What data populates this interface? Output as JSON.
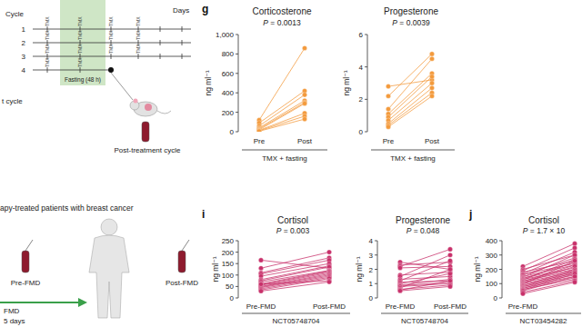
{
  "chart_data": [
    {
      "type": "line",
      "title": "Corticosterone",
      "annotations": [
        "P = 0.0013"
      ],
      "ylabel": "ng ml⁻¹",
      "xlabel": "TMX + fasting",
      "categories": [
        "Pre",
        "Post"
      ],
      "color": "#f39a3c",
      "marker": "circle",
      "ylim": [
        0,
        1000
      ],
      "yticks": [
        0,
        200,
        400,
        600,
        800,
        {
          "value": 1000,
          "label": "1,000"
        }
      ],
      "series": [
        {
          "values": [
            120,
            860
          ]
        },
        {
          "values": [
            90,
            420
          ]
        },
        {
          "values": [
            60,
            380
          ]
        },
        {
          "values": [
            40,
            320
          ]
        },
        {
          "values": [
            30,
            300
          ]
        },
        {
          "values": [
            20,
            290
          ]
        },
        {
          "values": [
            15,
            190
          ]
        },
        {
          "values": [
            10,
            160
          ]
        },
        {
          "values": [
            5,
            130
          ]
        }
      ]
    },
    {
      "type": "line",
      "title": "Progesterone",
      "annotations": [
        "P = 0.0039"
      ],
      "ylabel": "ng ml⁻¹",
      "xlabel": "TMX + fasting",
      "categories": [
        "Pre",
        "Post"
      ],
      "color": "#f39a3c",
      "marker": "circle",
      "ylim": [
        0,
        6
      ],
      "yticks": [
        0,
        2,
        4,
        6
      ],
      "series": [
        {
          "values": [
            2.8,
            3.2
          ]
        },
        {
          "values": [
            2.2,
            4.8
          ]
        },
        {
          "values": [
            1.4,
            4.5
          ]
        },
        {
          "values": [
            1.1,
            3.6
          ]
        },
        {
          "values": [
            0.9,
            3.4
          ]
        },
        {
          "values": [
            0.7,
            3.0
          ]
        },
        {
          "values": [
            0.5,
            2.7
          ]
        },
        {
          "values": [
            0.4,
            2.4
          ]
        },
        {
          "values": [
            0.3,
            2.2
          ]
        }
      ]
    },
    {
      "type": "line",
      "title": "Cortisol",
      "annotations": [
        "P = 0.003"
      ],
      "ylabel": "ng ml⁻¹",
      "xlabel": "NCT05748704",
      "categories": [
        "Pre-FMD",
        "Post-FMD"
      ],
      "color": "#c8306a",
      "marker": "circle",
      "ylim": [
        0,
        250
      ],
      "yticks": [
        0,
        50,
        100,
        150,
        200,
        250
      ],
      "series": [
        {
          "values": [
            165,
            130
          ]
        },
        {
          "values": [
            130,
            200
          ]
        },
        {
          "values": [
            110,
            175
          ]
        },
        {
          "values": [
            105,
            165
          ]
        },
        {
          "values": [
            95,
            150
          ]
        },
        {
          "values": [
            80,
            140
          ]
        },
        {
          "values": [
            75,
            135
          ]
        },
        {
          "values": [
            70,
            120
          ]
        },
        {
          "values": [
            62,
            118
          ]
        },
        {
          "values": [
            58,
            115
          ]
        },
        {
          "values": [
            55,
            110
          ]
        },
        {
          "values": [
            50,
            105
          ]
        },
        {
          "values": [
            48,
            100
          ]
        },
        {
          "values": [
            45,
            95
          ]
        },
        {
          "values": [
            40,
            90
          ]
        },
        {
          "values": [
            35,
            85
          ]
        },
        {
          "values": [
            60,
            75
          ]
        },
        {
          "values": [
            30,
            70
          ]
        }
      ]
    },
    {
      "type": "line",
      "title": "Progesterone",
      "annotations": [
        "P = 0.048"
      ],
      "ylabel": "ng ml⁻¹",
      "xlabel": "NCT05748704",
      "categories": [
        "Pre-FMD",
        "Post-FMD"
      ],
      "color": "#c8306a",
      "marker": "circle",
      "ylim": [
        0,
        4
      ],
      "yticks": [
        0,
        1,
        2,
        3,
        4
      ],
      "series": [
        {
          "values": [
            2.5,
            2.0
          ]
        },
        {
          "values": [
            2.3,
            2.5
          ]
        },
        {
          "values": [
            2.2,
            3.4
          ]
        },
        {
          "values": [
            2.1,
            2.2
          ]
        },
        {
          "values": [
            1.6,
            1.8
          ]
        },
        {
          "values": [
            1.5,
            3.0
          ]
        },
        {
          "values": [
            1.3,
            1.5
          ]
        },
        {
          "values": [
            1.2,
            2.6
          ]
        },
        {
          "values": [
            1.1,
            1.2
          ]
        },
        {
          "values": [
            1.0,
            1.7
          ]
        },
        {
          "values": [
            0.9,
            1.3
          ]
        },
        {
          "values": [
            0.85,
            1.1
          ]
        },
        {
          "values": [
            0.8,
            1.0
          ]
        },
        {
          "values": [
            0.7,
            2.0
          ]
        },
        {
          "values": [
            0.6,
            0.9
          ]
        },
        {
          "values": [
            0.55,
            1.2
          ]
        },
        {
          "values": [
            0.5,
            0.8
          ]
        }
      ]
    },
    {
      "type": "line",
      "title": "Cortisol",
      "annotations": [
        "P = 1.7 × 10"
      ],
      "ylabel": "ng ml⁻¹",
      "xlabel": "NCT03454282",
      "categories": [
        "Pre-FMD",
        null
      ],
      "color": "#c8306a",
      "marker": "circle",
      "ylim": [
        0,
        400
      ],
      "yticks": [
        0,
        100,
        200,
        300,
        400
      ],
      "series": [
        {
          "values": [
            220,
            380
          ]
        },
        {
          "values": [
            200,
            300
          ]
        },
        {
          "values": [
            190,
            350
          ]
        },
        {
          "values": [
            180,
            260
          ]
        },
        {
          "values": [
            170,
            320
          ]
        },
        {
          "values": [
            165,
            240
          ]
        },
        {
          "values": [
            160,
            280
          ]
        },
        {
          "values": [
            150,
            230
          ]
        },
        {
          "values": [
            145,
            300
          ]
        },
        {
          "values": [
            140,
            210
          ]
        },
        {
          "values": [
            135,
            250
          ]
        },
        {
          "values": [
            130,
            200
          ]
        },
        {
          "values": [
            125,
            270
          ]
        },
        {
          "values": [
            120,
            190
          ]
        },
        {
          "values": [
            115,
            230
          ]
        },
        {
          "values": [
            110,
            180
          ]
        },
        {
          "values": [
            105,
            220
          ]
        },
        {
          "values": [
            100,
            170
          ]
        },
        {
          "values": [
            95,
            260
          ]
        },
        {
          "values": [
            90,
            160
          ]
        },
        {
          "values": [
            85,
            200
          ]
        },
        {
          "values": [
            80,
            150
          ]
        },
        {
          "values": [
            75,
            190
          ]
        },
        {
          "values": [
            70,
            140
          ]
        },
        {
          "values": [
            65,
            180
          ]
        },
        {
          "values": [
            60,
            130
          ]
        },
        {
          "values": [
            55,
            170
          ]
        },
        {
          "values": [
            50,
            150
          ]
        },
        {
          "values": [
            40,
            120
          ]
        },
        {
          "values": [
            30,
            110
          ]
        }
      ]
    }
  ],
  "figure": {
    "panel_labels": [
      "g",
      "i",
      "j"
    ],
    "mouse_schematic": {
      "cycle_label": "Cycle",
      "rows": [
        1,
        2,
        3,
        4
      ],
      "treatment": "TMX",
      "shaded": "Fasting (48 h)",
      "days": "Days",
      "sampling": "Post-treatment cycle",
      "cut_text": "t cycle"
    },
    "patient_schematic": {
      "caption": "apy-treated patients with breast cancer",
      "pre": "Pre-FMD",
      "post": "Post-FMD",
      "arrow": "FMD",
      "duration": "5 days"
    }
  }
}
